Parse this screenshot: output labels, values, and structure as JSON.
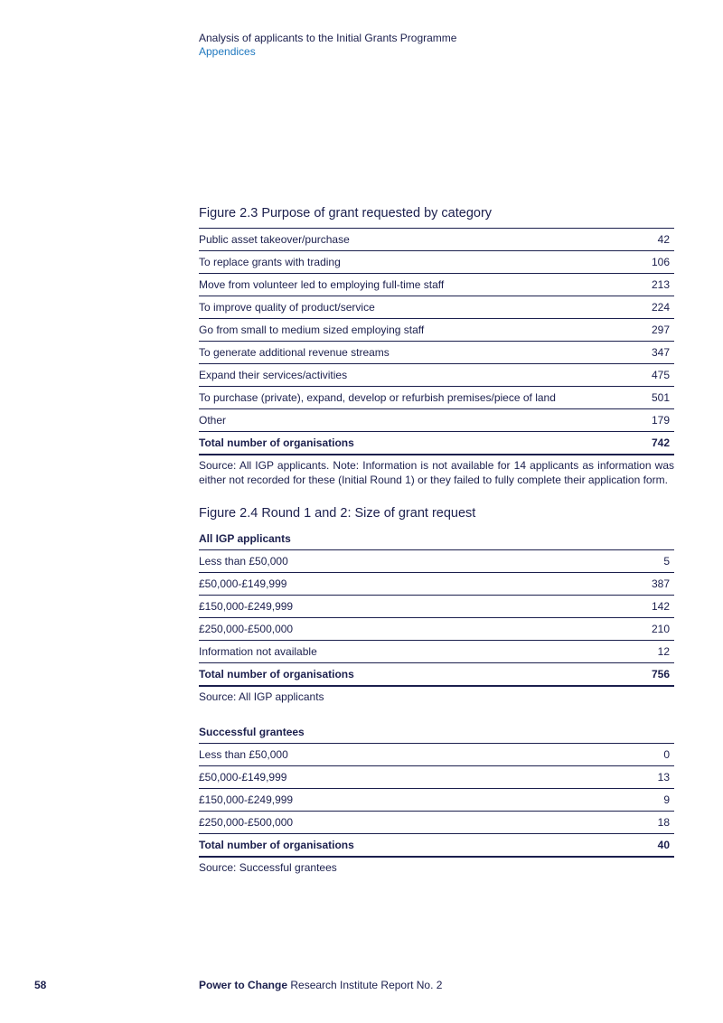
{
  "header": {
    "title": "Analysis of applicants to the Initial Grants Programme",
    "subtitle": "Appendices"
  },
  "figures": [
    {
      "title": "Figure 2.3 Purpose of grant requested by category",
      "sections": [
        {
          "rows": [
            [
              "Public asset takeover/purchase",
              "42"
            ],
            [
              "To replace grants with trading",
              "106"
            ],
            [
              "Move from volunteer led to employing full-time staff",
              "213"
            ],
            [
              "To improve quality of product/service",
              "224"
            ],
            [
              "Go from small to medium sized employing staff",
              "297"
            ],
            [
              "To generate additional revenue streams",
              "347"
            ],
            [
              "Expand their services/activities",
              "475"
            ],
            [
              "To purchase (private), expand, develop or refurbish premises/piece of land",
              "501"
            ],
            [
              "Other",
              "179"
            ]
          ],
          "total": [
            "Total number of organisations",
            "742"
          ],
          "source": "Source: All IGP applicants. Note: Information is not available for 14 applicants as information was either not recorded for these (Initial Round 1) or they failed to fully complete their application form."
        }
      ]
    },
    {
      "title": "Figure 2.4 Round 1 and 2: Size of grant request",
      "sections": [
        {
          "heading": "All IGP applicants",
          "rows": [
            [
              "Less than £50,000",
              "5"
            ],
            [
              "£50,000-£149,999",
              "387"
            ],
            [
              "£150,000-£249,999",
              "142"
            ],
            [
              "£250,000-£500,000",
              "210"
            ],
            [
              "Information not available",
              "12"
            ]
          ],
          "total": [
            "Total number of organisations",
            "756"
          ],
          "source": "Source: All IGP applicants"
        },
        {
          "heading": "Successful grantees",
          "rows": [
            [
              "Less than £50,000",
              "0"
            ],
            [
              "£50,000-£149,999",
              "13"
            ],
            [
              "£150,000-£249,999",
              "9"
            ],
            [
              "£250,000-£500,000",
              "18"
            ]
          ],
          "total": [
            "Total number of organisations",
            "40"
          ],
          "source": "Source: Successful grantees"
        }
      ]
    }
  ],
  "footer": {
    "page": "58",
    "brand": "Power to Change",
    "report": "Research Institute Report No. 2"
  }
}
